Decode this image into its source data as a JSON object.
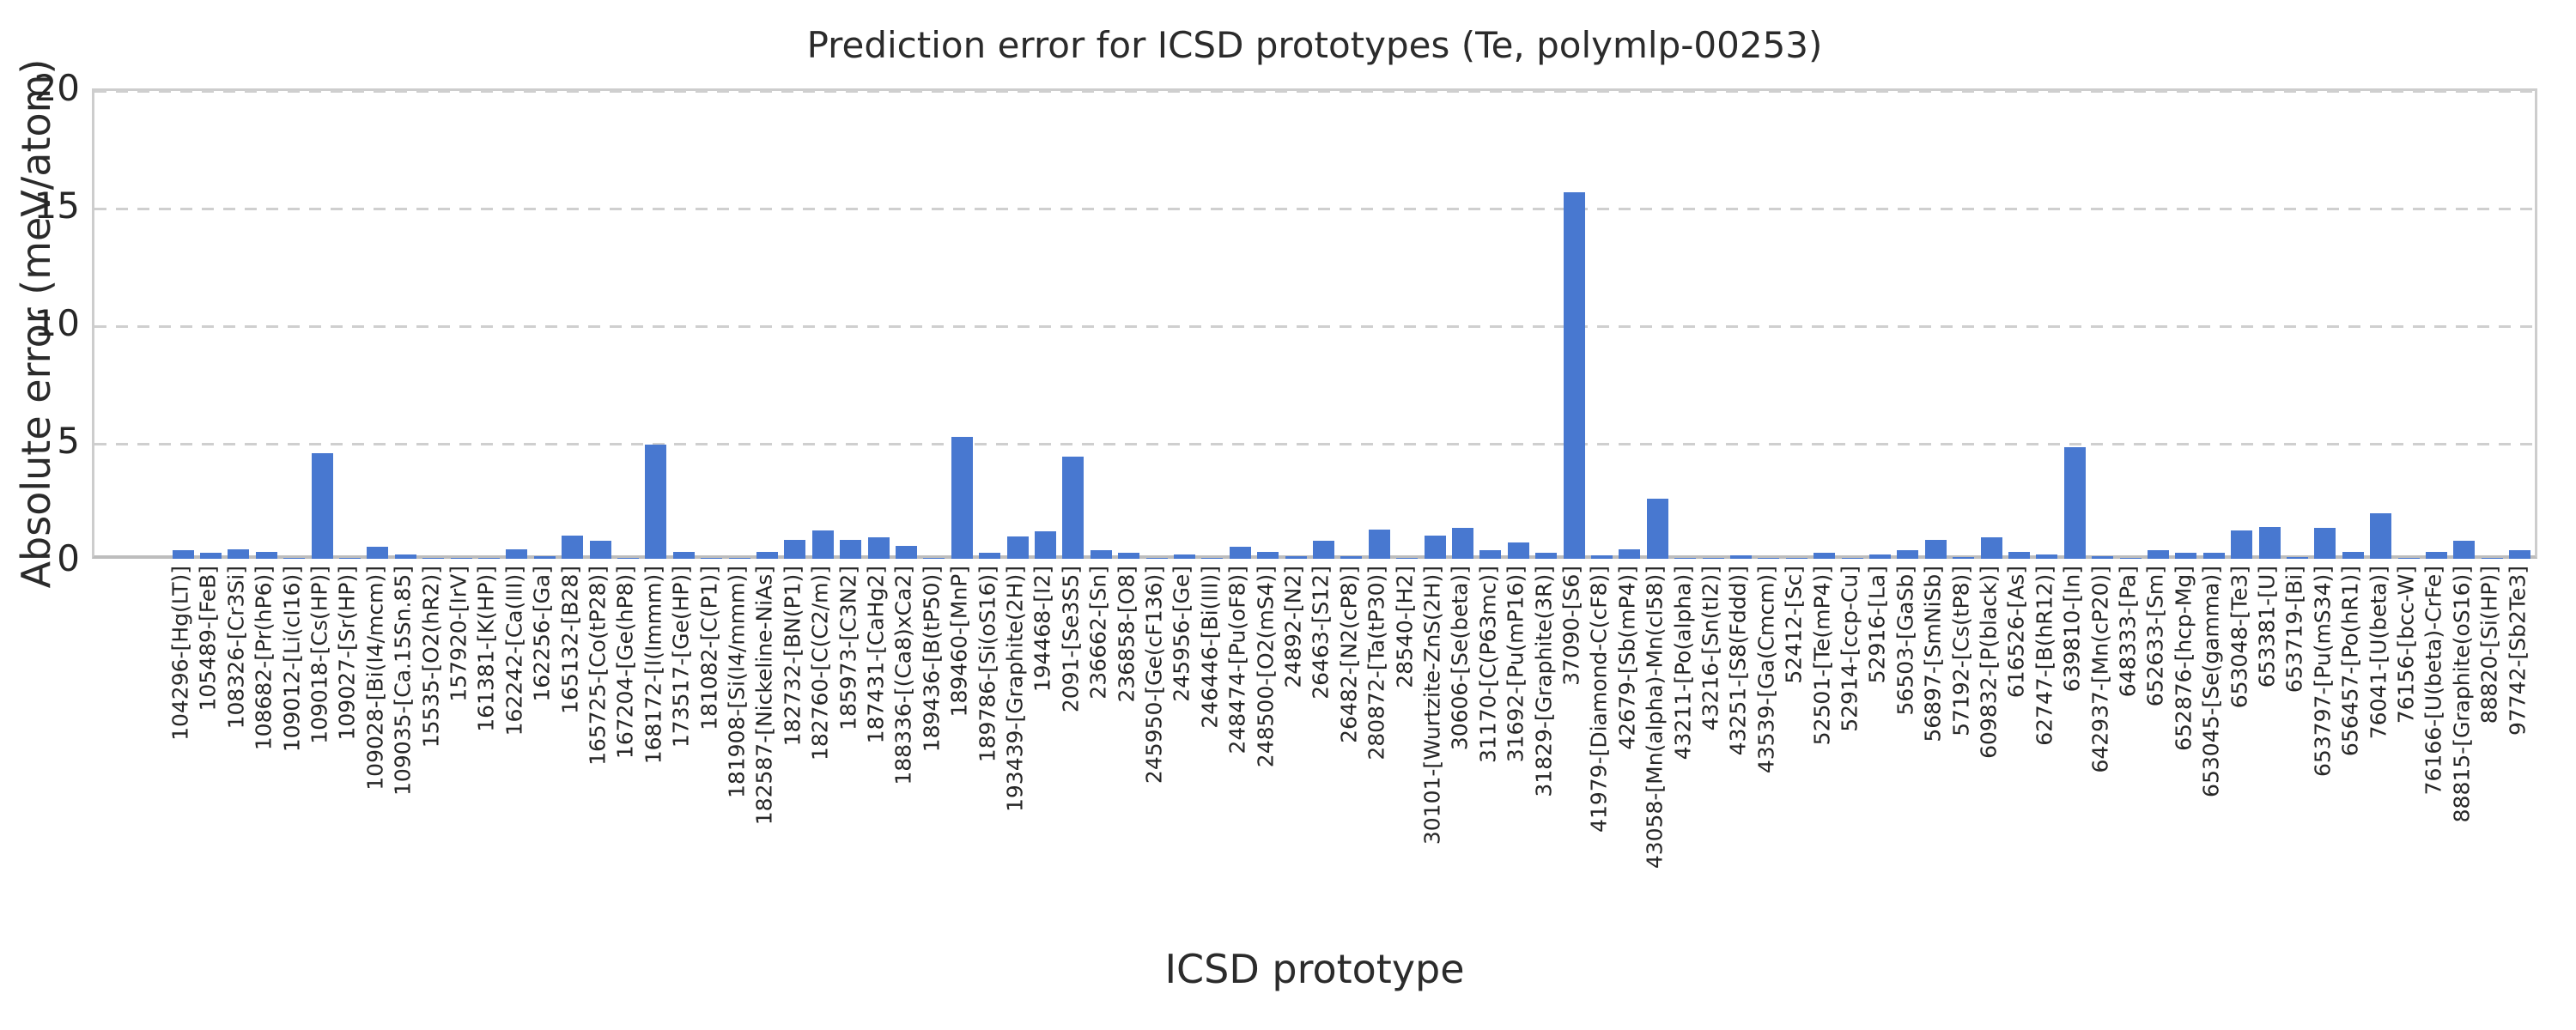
{
  "chart_data": {
    "type": "bar",
    "title": "Prediction error for ICSD prototypes (Te, polymlp-00253)",
    "xlabel": "ICSD prototype",
    "ylabel": "Absolute error (meV/atom)",
    "ylim": [
      0,
      20
    ],
    "yticks": [
      0,
      5,
      10,
      15,
      20
    ],
    "grid": "horizontal-dashed",
    "legend": "none",
    "bar_color": "#4878d0",
    "categories": [
      "104296-[Hg(LT)]",
      "105489-[FeB]",
      "108326-[Cr3Si]",
      "108682-[Pr(hP6)]",
      "109012-[Li(cI16)]",
      "109018-[Cs(HP)]",
      "109027-[Sr(HP)]",
      "109028-[Bi(I4/mcm)]",
      "109035-[Ca.15Sn.85]",
      "15535-[O2(hR2)]",
      "157920-[IrV]",
      "161381-[K(HP)]",
      "162242-[Ca(III)]",
      "162256-[Ga]",
      "165132-[B28]",
      "165725-[Co(tP28)]",
      "167204-[Ge(hP8)]",
      "168172-[I(Immm)]",
      "173517-[Ge(HP)]",
      "181082-[C(P1)]",
      "181908-[Si(I4/mmm)]",
      "182587-[Nickeline-NiAs]",
      "182732-[BN(P1)]",
      "182760-[C(C2/m)]",
      "185973-[C3N2]",
      "187431-[CaHg2]",
      "188336-[(Ca8)xCa2]",
      "189436-[B(tP50)]",
      "189460-[MnP]",
      "189786-[Si(oS16)]",
      "193439-[Graphite(2H)]",
      "194468-[I2]",
      "2091-[Se3S5]",
      "236662-[Sn]",
      "236858-[O8]",
      "245950-[Ge(cF136)]",
      "245956-[Ge]",
      "246446-[Bi(III)]",
      "248474-[Pu(oF8)]",
      "248500-[O2(mS4)]",
      "24892-[N2]",
      "26463-[S12]",
      "26482-[N2(cP8)]",
      "280872-[Ta(tP30)]",
      "28540-[H2]",
      "30101-[Wurtzite-ZnS(2H)]",
      "30606-[Se(beta)]",
      "31170-[C(P63mc)]",
      "31692-[Pu(mP16)]",
      "31829-[Graphite(3R)]",
      "37090-[S6]",
      "41979-[Diamond-C(cF8)]",
      "42679-[Sb(mP4)]",
      "43058-[Mn(alpha)-Mn(cI58)]",
      "43211-[Po(alpha)]",
      "43216-[Sn(tI2)]",
      "43251-[S8(Fddd)]",
      "43539-[Ga(Cmcm)]",
      "52412-[Sc]",
      "52501-[Te(mP4)]",
      "52914-[ccp-Cu]",
      "52916-[La]",
      "56503-[GaSb]",
      "56897-[SmNiSb]",
      "57192-[Cs(tP8)]",
      "609832-[P(black)]",
      "616526-[As]",
      "62747-[B(hR12)]",
      "639810-[In]",
      "642937-[Mn(cP20)]",
      "648333-[Pa]",
      "652633-[Sm]",
      "652876-[hcp-Mg]",
      "653045-[Se(gamma)]",
      "653048-[Te3]",
      "653381-[U]",
      "653719-[Bi]",
      "653797-[Pu(mS34)]",
      "656457-[Po(hR1)]",
      "76041-[U(beta)]",
      "76156-[bcc-W]",
      "76166-[U(beta)-CrFe]",
      "88815-[Graphite(oS16)]",
      "88820-[Si(HP)]",
      "97742-[Sb2Te3]"
    ],
    "values": [
      0.35,
      0.25,
      0.4,
      0.28,
      0.03,
      4.5,
      0.02,
      0.5,
      0.18,
      0.02,
      0.02,
      0.02,
      0.4,
      0.1,
      1.0,
      0.75,
      0.02,
      4.85,
      0.28,
      0.02,
      0.02,
      0.3,
      0.8,
      1.2,
      0.8,
      0.9,
      0.55,
      0.03,
      5.2,
      0.25,
      0.95,
      1.15,
      4.35,
      0.35,
      0.25,
      0.03,
      0.17,
      0.03,
      0.5,
      0.3,
      0.1,
      0.75,
      0.1,
      1.25,
      0.02,
      1.0,
      1.3,
      0.35,
      0.7,
      0.25,
      15.6,
      0.13,
      0.4,
      2.55,
      0.02,
      0.02,
      0.16,
      0.02,
      0.02,
      0.25,
      0.02,
      0.2,
      0.35,
      0.8,
      0.07,
      0.9,
      0.3,
      0.2,
      4.75,
      0.12,
      0.02,
      0.35,
      0.25,
      0.25,
      1.2,
      1.35,
      0.06,
      1.3,
      0.3,
      1.95,
      0.02,
      0.3,
      0.75,
      0.02,
      0.35
    ]
  }
}
